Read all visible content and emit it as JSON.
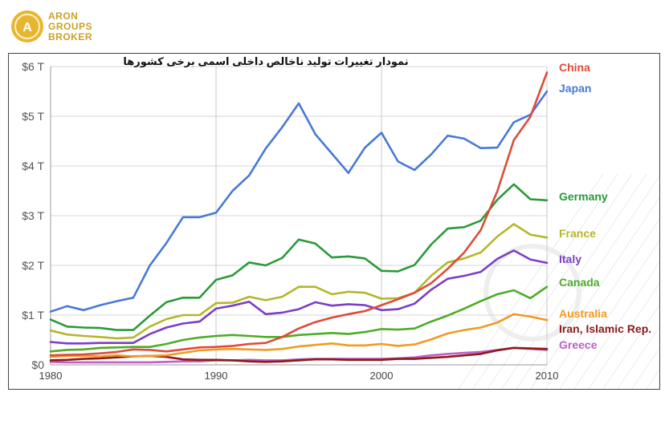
{
  "brand": {
    "logo_lines": [
      "ARON",
      "GROUPS",
      "BROKER"
    ],
    "accent_color": "#d9a92b"
  },
  "chart_data": {
    "type": "line",
    "title": "نمودار تغییرات تولید ناخالص داخلی اسمی برخی کشورها",
    "xlabel": "",
    "ylabel": "",
    "x_ticks": [
      "1980",
      "1990",
      "2000",
      "2010"
    ],
    "y_ticks": [
      "$0",
      "$1 T",
      "$2 T",
      "$3 T",
      "$4 T",
      "$5 T",
      "$6 T"
    ],
    "xlim": [
      1980,
      2010
    ],
    "ylim": [
      0,
      6
    ],
    "grid": true,
    "x": [
      1980,
      1981,
      1982,
      1983,
      1984,
      1985,
      1986,
      1987,
      1988,
      1989,
      1990,
      1991,
      1992,
      1993,
      1994,
      1995,
      1996,
      1997,
      1998,
      1999,
      2000,
      2001,
      2002,
      2003,
      2004,
      2005,
      2006,
      2007,
      2008,
      2009,
      2010
    ],
    "series": [
      {
        "name": "China",
        "color": "#dd4b39",
        "values": [
          0.19,
          0.2,
          0.21,
          0.23,
          0.26,
          0.31,
          0.3,
          0.27,
          0.31,
          0.35,
          0.36,
          0.38,
          0.42,
          0.44,
          0.56,
          0.73,
          0.86,
          0.95,
          1.02,
          1.08,
          1.2,
          1.32,
          1.45,
          1.64,
          1.93,
          2.26,
          2.71,
          3.49,
          4.52,
          4.99,
          5.88
        ]
      },
      {
        "name": "Japan",
        "color": "#4a79d4",
        "values": [
          1.07,
          1.18,
          1.1,
          1.2,
          1.28,
          1.35,
          2.0,
          2.45,
          2.97,
          2.97,
          3.06,
          3.5,
          3.81,
          4.35,
          4.78,
          5.26,
          4.64,
          4.25,
          3.86,
          4.37,
          4.67,
          4.09,
          3.92,
          4.23,
          4.61,
          4.55,
          4.36,
          4.37,
          4.88,
          5.03,
          5.5
        ]
      },
      {
        "name": "Germany",
        "color": "#2a9a3a",
        "values": [
          0.91,
          0.77,
          0.75,
          0.74,
          0.7,
          0.7,
          0.99,
          1.26,
          1.35,
          1.35,
          1.71,
          1.8,
          2.06,
          2.0,
          2.15,
          2.52,
          2.44,
          2.16,
          2.18,
          2.14,
          1.89,
          1.88,
          2.01,
          2.42,
          2.74,
          2.77,
          2.9,
          3.32,
          3.63,
          3.33,
          3.31
        ]
      },
      {
        "name": "France",
        "color": "#b5b62b",
        "values": [
          0.69,
          0.61,
          0.58,
          0.56,
          0.53,
          0.55,
          0.77,
          0.92,
          1.0,
          1.0,
          1.24,
          1.25,
          1.37,
          1.3,
          1.37,
          1.57,
          1.57,
          1.42,
          1.47,
          1.45,
          1.33,
          1.34,
          1.45,
          1.79,
          2.06,
          2.14,
          2.26,
          2.58,
          2.83,
          2.62,
          2.56
        ]
      },
      {
        "name": "Italy",
        "color": "#7a3fc8",
        "values": [
          0.46,
          0.43,
          0.43,
          0.44,
          0.44,
          0.44,
          0.62,
          0.75,
          0.83,
          0.87,
          1.13,
          1.19,
          1.27,
          1.02,
          1.05,
          1.12,
          1.26,
          1.19,
          1.22,
          1.2,
          1.1,
          1.12,
          1.23,
          1.51,
          1.73,
          1.79,
          1.87,
          2.13,
          2.3,
          2.12,
          2.05
        ]
      },
      {
        "name": "Canada",
        "color": "#4dac26",
        "values": [
          0.27,
          0.3,
          0.31,
          0.34,
          0.35,
          0.36,
          0.36,
          0.42,
          0.5,
          0.55,
          0.58,
          0.6,
          0.58,
          0.56,
          0.56,
          0.6,
          0.62,
          0.64,
          0.62,
          0.66,
          0.72,
          0.71,
          0.73,
          0.87,
          0.99,
          1.13,
          1.28,
          1.42,
          1.5,
          1.34,
          1.57
        ]
      },
      {
        "name": "Australia",
        "color": "#f19a23",
        "values": [
          0.16,
          0.18,
          0.18,
          0.17,
          0.19,
          0.17,
          0.18,
          0.19,
          0.24,
          0.29,
          0.31,
          0.32,
          0.31,
          0.3,
          0.32,
          0.37,
          0.4,
          0.43,
          0.39,
          0.39,
          0.42,
          0.38,
          0.41,
          0.51,
          0.63,
          0.7,
          0.75,
          0.85,
          1.02,
          0.97,
          0.9
        ]
      },
      {
        "name": "Iran, Islamic Rep.",
        "color": "#8b1a1a",
        "values": [
          0.09,
          0.1,
          0.12,
          0.13,
          0.15,
          0.17,
          0.18,
          0.16,
          0.11,
          0.1,
          0.1,
          0.09,
          0.07,
          0.06,
          0.07,
          0.09,
          0.11,
          0.11,
          0.1,
          0.1,
          0.1,
          0.12,
          0.12,
          0.14,
          0.16,
          0.19,
          0.22,
          0.29,
          0.34,
          0.33,
          0.32
        ]
      },
      {
        "name": "Greece",
        "color": "#c05fc5",
        "values": [
          0.06,
          0.05,
          0.05,
          0.05,
          0.05,
          0.05,
          0.05,
          0.06,
          0.07,
          0.07,
          0.09,
          0.09,
          0.1,
          0.09,
          0.09,
          0.11,
          0.12,
          0.12,
          0.12,
          0.12,
          0.12,
          0.13,
          0.15,
          0.19,
          0.22,
          0.24,
          0.26,
          0.3,
          0.34,
          0.32,
          0.3
        ]
      }
    ]
  }
}
